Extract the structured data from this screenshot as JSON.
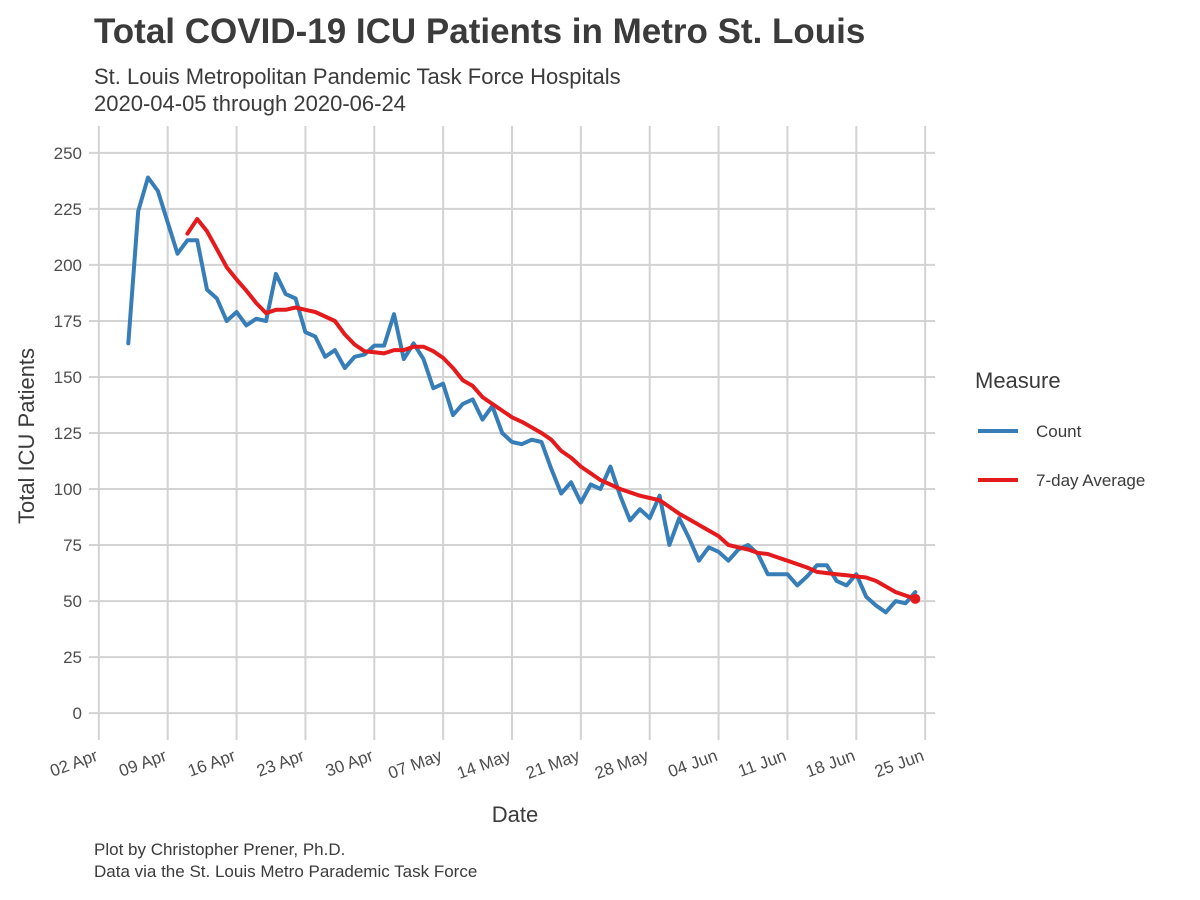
{
  "chart_data": {
    "type": "line",
    "title": "Total COVID-19 ICU Patients in Metro St. Louis",
    "subtitle": [
      "St. Louis Metropolitan Pandemic Task Force Hospitals",
      "2020-04-05 through 2020-06-24"
    ],
    "caption": [
      "Plot by Christopher Prener, Ph.D.",
      "Data via the St. Louis Metro Parademic Task Force"
    ],
    "xlabel": "Date",
    "ylabel": "Total ICU Patients",
    "x_start": "2020-04-05",
    "xlim": [
      "2020-04-01",
      "2020-06-26"
    ],
    "ylim": [
      -12,
      262
    ],
    "x_ticks": [
      {
        "date": "2020-04-02",
        "label": "02 Apr"
      },
      {
        "date": "2020-04-09",
        "label": "09 Apr"
      },
      {
        "date": "2020-04-16",
        "label": "16 Apr"
      },
      {
        "date": "2020-04-23",
        "label": "23 Apr"
      },
      {
        "date": "2020-04-30",
        "label": "30 Apr"
      },
      {
        "date": "2020-05-07",
        "label": "07 May"
      },
      {
        "date": "2020-05-14",
        "label": "14 May"
      },
      {
        "date": "2020-05-21",
        "label": "21 May"
      },
      {
        "date": "2020-05-28",
        "label": "28 May"
      },
      {
        "date": "2020-06-04",
        "label": "04 Jun"
      },
      {
        "date": "2020-06-11",
        "label": "11 Jun"
      },
      {
        "date": "2020-06-18",
        "label": "18 Jun"
      },
      {
        "date": "2020-06-25",
        "label": "25 Jun"
      }
    ],
    "y_ticks": [
      0,
      25,
      50,
      75,
      100,
      125,
      150,
      175,
      200,
      225,
      250
    ],
    "grid": true,
    "legend": {
      "title": "Measure",
      "position": "right"
    },
    "series": [
      {
        "name": "Count",
        "color": "#377eb8",
        "start_date": "2020-04-05",
        "values": [
          165,
          224,
          239,
          233,
          219,
          205,
          211,
          211,
          189,
          185,
          175,
          179,
          173,
          176,
          175,
          196,
          187,
          185,
          170,
          168,
          159,
          162,
          154,
          159,
          160,
          164,
          164,
          178,
          158,
          165,
          158,
          145,
          147,
          133,
          138,
          140,
          131,
          137,
          125,
          121,
          120,
          122,
          121,
          109,
          98,
          103,
          94,
          102,
          100,
          110,
          97,
          86,
          91,
          87,
          97,
          75,
          87,
          78,
          68,
          74,
          72,
          68,
          73,
          75,
          71,
          62,
          62,
          62,
          57,
          61,
          66,
          66,
          59,
          57,
          62,
          52,
          48,
          45,
          50,
          49,
          54
        ]
      },
      {
        "name": "7-day Average",
        "color": "#e41a1c",
        "start_date": "2020-04-11",
        "values": [
          214,
          220.5,
          215,
          207,
          199,
          193.5,
          188.5,
          183,
          178.5,
          180,
          180,
          181,
          180,
          179,
          177,
          175,
          169,
          164.5,
          161.5,
          161,
          160.5,
          162,
          162,
          163.5,
          163.5,
          161.5,
          158.5,
          154,
          148.5,
          146,
          141,
          138,
          135,
          132,
          130,
          127.5,
          125,
          122,
          117,
          114,
          110,
          107,
          104,
          102,
          100,
          98.5,
          97,
          96,
          95,
          92,
          89,
          86.5,
          84,
          81.5,
          79,
          75,
          74,
          73,
          71.5,
          71,
          69.5,
          68,
          66.5,
          65,
          63,
          62.5,
          62,
          61.5,
          61,
          60.5,
          59,
          56.5,
          54,
          52.5,
          51
        ]
      }
    ],
    "end_marker": {
      "date": "2020-06-24",
      "value": 51,
      "color": "#e41a1c"
    }
  }
}
